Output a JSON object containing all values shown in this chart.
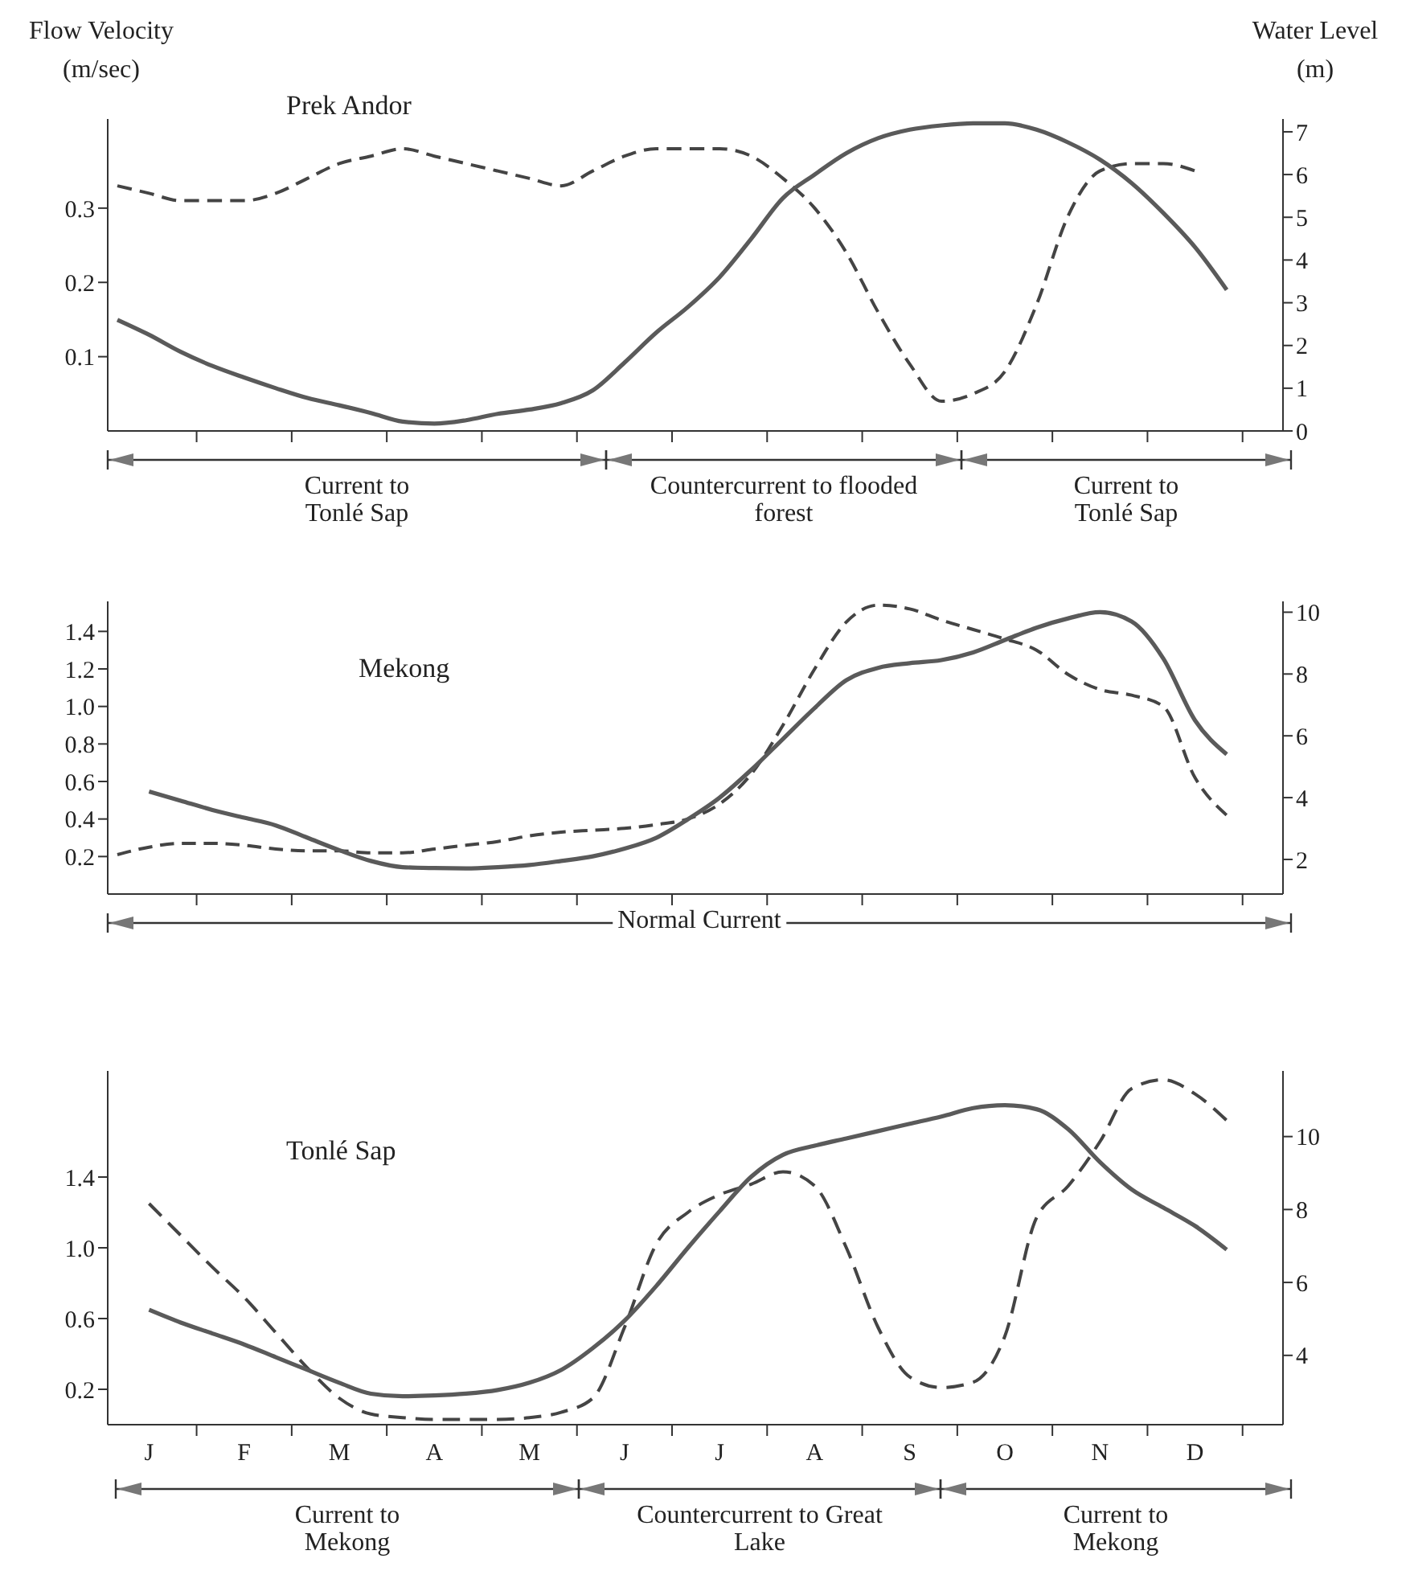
{
  "chart_data": [
    {
      "type": "line",
      "title": "Prek Andor",
      "ylabel": "Flow Velocity (m/sec)",
      "y2label": "Water Level (m)",
      "categories": [
        null,
        null,
        null,
        null,
        null,
        null,
        null,
        null,
        null,
        null,
        null,
        null,
        null,
        null,
        null,
        null,
        null,
        null,
        null,
        null,
        null,
        null,
        null,
        null,
        null,
        null,
        null,
        null,
        null,
        null,
        null,
        null,
        null,
        null,
        null,
        null
      ],
      "ylim": [
        0,
        0.42
      ],
      "yticks": [
        0.1,
        0.2,
        0.3
      ],
      "y2lim": [
        0,
        7.3
      ],
      "y2ticks": [
        0,
        1,
        2,
        3,
        4,
        5,
        6,
        7
      ],
      "series": [
        {
          "color": "#444444",
          "line_style": "dashed",
          "values": [
            0.33,
            0.32,
            0.31,
            0.31,
            0.31,
            0.32,
            0.34,
            0.36,
            0.37,
            0.38,
            0.37,
            0.36,
            0.35,
            0.34,
            0.33,
            0.35,
            0.37,
            0.38,
            0.38,
            0.38,
            0.37,
            0.34,
            0.3,
            0.24,
            0.16,
            0.09,
            0.04,
            0.05,
            0.08,
            0.17,
            0.29,
            0.35,
            0.36,
            0.36,
            0.35,
            null
          ]
        },
        {
          "color": "#5a5a5a",
          "line_style": "solid",
          "axis": "y2",
          "values": [
            2.6,
            2.25,
            1.85,
            1.52,
            1.25,
            1.0,
            0.77,
            0.6,
            0.42,
            0.22,
            0.17,
            0.25,
            0.4,
            0.5,
            0.65,
            0.95,
            1.6,
            2.3,
            2.9,
            3.6,
            4.5,
            5.45,
            6.0,
            6.5,
            6.85,
            7.05,
            7.15,
            7.2,
            7.2,
            7.05,
            6.75,
            6.35,
            5.8,
            5.1,
            4.3,
            3.3
          ]
        }
      ],
      "annotations": [
        "Current to Tonlé Sap",
        "Countercurrent to flooded forest",
        "Current to Tonlé Sap"
      ]
    },
    {
      "type": "line",
      "title": "Mekong",
      "categories": [
        null,
        null,
        null,
        null,
        null,
        null,
        null,
        null,
        null,
        null,
        null,
        null,
        null,
        null,
        null,
        null,
        null,
        null,
        null,
        null,
        null,
        null,
        null,
        null,
        null,
        null,
        null,
        null,
        null,
        null,
        null,
        null,
        null,
        null,
        null,
        null
      ],
      "ylim": [
        0,
        1.56
      ],
      "yticks": [
        0.2,
        0.4,
        0.6,
        0.8,
        {
          "value": 1,
          "label": "1.0"
        },
        1.2,
        1.4
      ],
      "y2lim": [
        0.88,
        10.35
      ],
      "y2ticks": [
        2,
        4,
        6,
        8,
        10
      ],
      "series": [
        {
          "color": "#444444",
          "line_style": "dashed",
          "values": [
            0.21,
            0.25,
            0.27,
            0.27,
            0.26,
            0.24,
            0.23,
            0.23,
            0.22,
            0.22,
            0.24,
            0.26,
            0.28,
            0.31,
            0.33,
            0.34,
            0.35,
            0.37,
            0.4,
            0.48,
            0.64,
            0.9,
            1.2,
            1.45,
            1.54,
            1.52,
            1.46,
            1.41,
            1.36,
            1.3,
            1.17,
            1.09,
            1.06,
            1.0,
            0.62,
            0.42
          ]
        },
        {
          "color": "#5a5a5a",
          "line_style": "solid",
          "axis": "y2",
          "values": [
            null,
            4.2,
            3.9,
            3.6,
            3.35,
            3.1,
            2.7,
            2.3,
            1.95,
            1.75,
            1.72,
            1.71,
            1.75,
            1.82,
            1.95,
            2.1,
            2.35,
            2.7,
            3.3,
            4.0,
            4.9,
            5.9,
            6.9,
            7.8,
            8.2,
            8.35,
            8.45,
            8.7,
            9.1,
            9.5,
            9.8,
            10.0,
            9.7,
            8.5,
            6.5,
            5.4
          ]
        }
      ],
      "annotations": [
        "Normal Current"
      ]
    },
    {
      "type": "line",
      "title": "Tonlé Sap",
      "categories": [
        null,
        "J",
        null,
        null,
        "F",
        null,
        null,
        "M",
        null,
        null,
        "A",
        null,
        null,
        "M",
        null,
        null,
        "J",
        null,
        null,
        "J",
        null,
        null,
        "A",
        null,
        null,
        "S",
        null,
        null,
        "O",
        null,
        null,
        "N",
        null,
        null,
        "D",
        null
      ],
      "ylim": [
        0,
        2.0
      ],
      "yticks": [
        0.2,
        0.6,
        {
          "value": 1,
          "label": "1.0"
        },
        1.4
      ],
      "y2lim": [
        2.1,
        11.8
      ],
      "y2ticks": [
        4,
        6,
        8,
        10
      ],
      "series": [
        {
          "color": "#444444",
          "line_style": "dashed",
          "values": [
            null,
            1.25,
            1.07,
            0.89,
            0.72,
            0.52,
            0.32,
            0.15,
            0.06,
            0.04,
            0.03,
            0.03,
            0.03,
            0.04,
            0.07,
            0.15,
            0.55,
            1.02,
            1.2,
            1.3,
            1.36,
            1.43,
            1.35,
            1.0,
            0.55,
            0.27,
            0.21,
            0.24,
            0.5,
            1.17,
            1.35,
            1.6,
            1.9,
            1.95,
            1.87,
            1.72
          ]
        },
        {
          "color": "#5a5a5a",
          "line_style": "solid",
          "axis": "y2",
          "values": [
            null,
            5.25,
            4.9,
            4.6,
            4.3,
            3.95,
            3.6,
            3.25,
            2.95,
            2.88,
            2.9,
            2.95,
            3.05,
            3.25,
            3.6,
            4.2,
            4.95,
            5.9,
            6.95,
            7.95,
            8.9,
            9.5,
            9.75,
            9.95,
            10.15,
            10.35,
            10.55,
            10.78,
            10.86,
            10.75,
            10.2,
            9.3,
            8.55,
            8.05,
            7.55,
            6.9
          ]
        }
      ],
      "annotations": [
        "Current to Mekong",
        "Countercurrent to Great Lake",
        "Current to Mekong"
      ]
    }
  ]
}
